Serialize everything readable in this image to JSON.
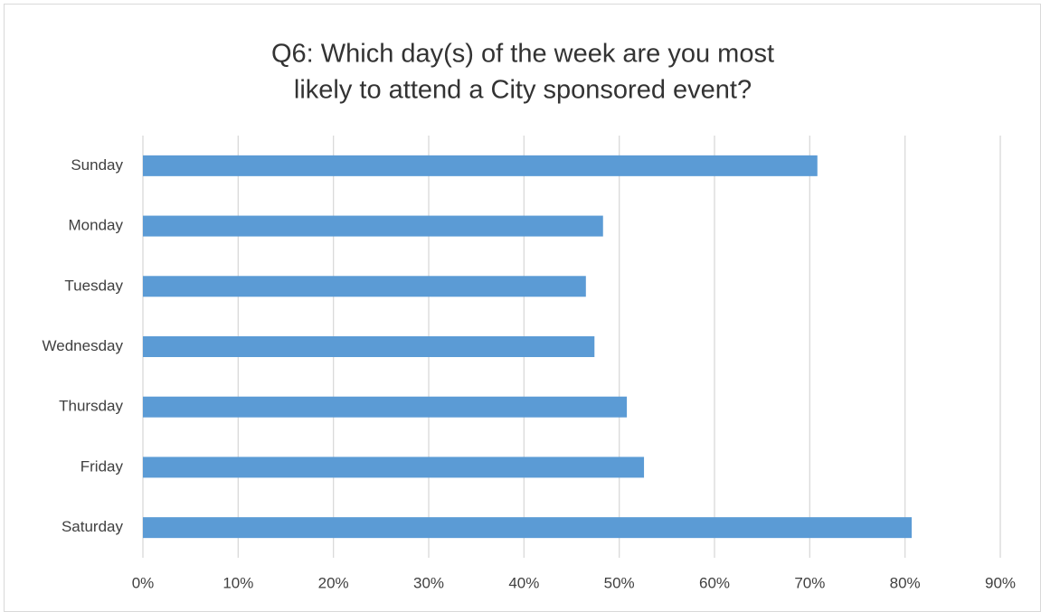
{
  "chart_data": {
    "type": "barh",
    "title": [
      "Q6: Which day(s) of the week are you most",
      "likely to attend a City sponsored event?"
    ],
    "categories": [
      "Sunday",
      "Monday",
      "Tuesday",
      "Wednesday",
      "Thursday",
      "Friday",
      "Saturday"
    ],
    "values": [
      70.8,
      48.3,
      46.5,
      47.4,
      50.8,
      52.6,
      80.7
    ],
    "color": "#5b9bd5",
    "xlim": [
      0,
      90
    ],
    "xticks": [
      {
        "value": 0,
        "label": "0%"
      },
      {
        "value": 10,
        "label": "10%"
      },
      {
        "value": 20,
        "label": "20%"
      },
      {
        "value": 30,
        "label": "30%"
      },
      {
        "value": 40,
        "label": "40%"
      },
      {
        "value": 50,
        "label": "50%"
      },
      {
        "value": 60,
        "label": "60%"
      },
      {
        "value": 70,
        "label": "70%"
      },
      {
        "value": 80,
        "label": "80%"
      },
      {
        "value": 90,
        "label": "90%"
      }
    ],
    "grid": true
  }
}
